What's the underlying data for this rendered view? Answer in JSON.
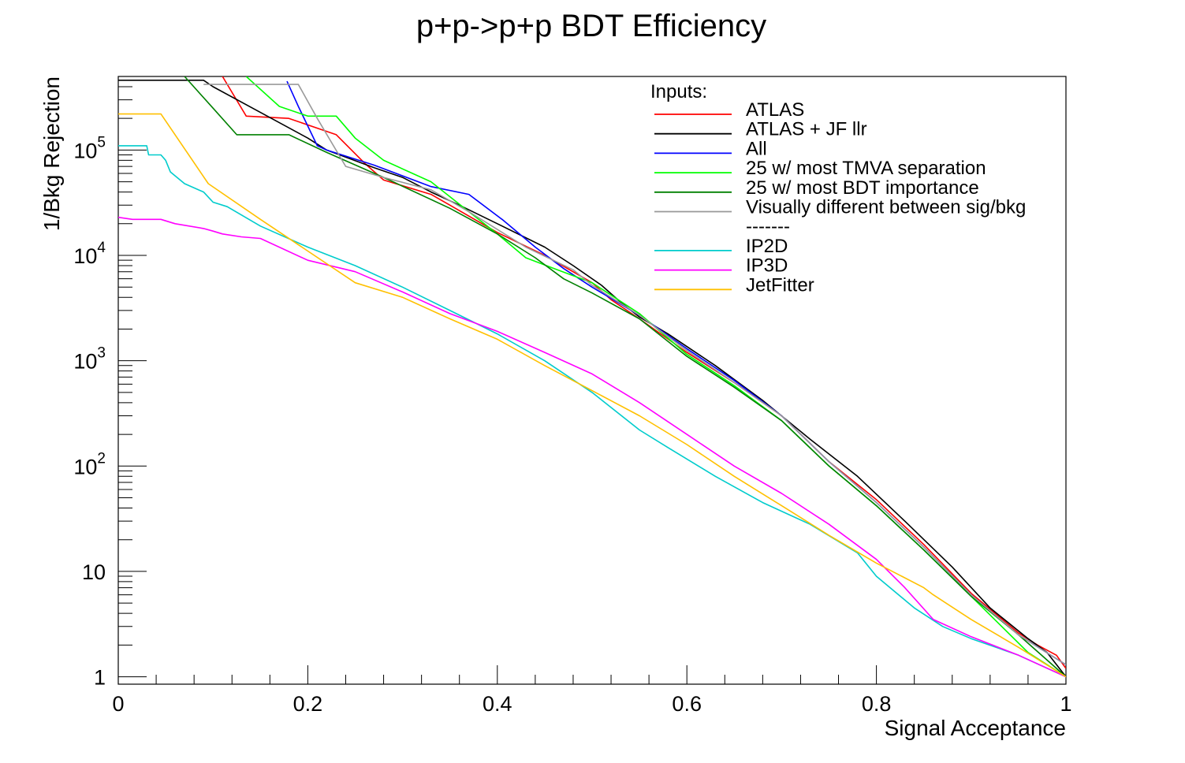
{
  "chart_data": {
    "type": "line",
    "title": "p+p->p+p BDT Efficiency",
    "xlabel": "Signal Acceptance",
    "ylabel": "1/Bkg Rejection",
    "xlim": [
      0,
      1
    ],
    "ylim": [
      0.85,
      500000
    ],
    "yscale": "log",
    "grid": false,
    "legend_placement": "top-right",
    "legend_header": "Inputs:",
    "legend_separator": "-------",
    "x_ticks": [
      {
        "value": 0,
        "label": "0"
      },
      {
        "value": 0.2,
        "label": "0.2"
      },
      {
        "value": 0.4,
        "label": "0.4"
      },
      {
        "value": 0.6,
        "label": "0.6"
      },
      {
        "value": 0.8,
        "label": "0.8"
      },
      {
        "value": 1,
        "label": "1"
      }
    ],
    "y_ticks": [
      {
        "value": 1,
        "label": "1"
      },
      {
        "value": 10,
        "label": "10"
      },
      {
        "value": 100,
        "base": "10",
        "exp": "2"
      },
      {
        "value": 1000,
        "base": "10",
        "exp": "3"
      },
      {
        "value": 10000,
        "base": "10",
        "exp": "4"
      },
      {
        "value": 100000,
        "base": "10",
        "exp": "5"
      }
    ],
    "series": [
      {
        "name": "ATLAS",
        "color": "#ff0000",
        "x": [
          0.11,
          0.135,
          0.18,
          0.23,
          0.26,
          0.28,
          0.33,
          0.35,
          0.4,
          0.45,
          0.5,
          0.52,
          0.55,
          0.6,
          0.65,
          0.7,
          0.75,
          0.8,
          0.85,
          0.9,
          0.95,
          0.97,
          0.99,
          1.0
        ],
        "y": [
          500000,
          210000,
          200000,
          140000,
          75000,
          52000,
          38000,
          30000,
          16500,
          10000,
          5500,
          3800,
          2500,
          1200,
          620,
          300,
          110,
          48,
          18,
          6.2,
          2.6,
          2.0,
          1.6,
          1.2
        ]
      },
      {
        "name": "ATLAS + JF llr",
        "color": "#000000",
        "x": [
          0.0,
          0.09,
          0.1,
          0.2,
          0.22,
          0.27,
          0.3,
          0.33,
          0.36,
          0.4,
          0.45,
          0.48,
          0.51,
          0.53,
          0.55,
          0.58,
          0.63,
          0.68,
          0.73,
          0.78,
          0.83,
          0.88,
          0.92,
          0.96,
          0.98,
          1.0
        ],
        "y": [
          460000,
          460000,
          400000,
          130000,
          100000,
          68000,
          55000,
          40000,
          30000,
          20000,
          12000,
          8000,
          5200,
          3600,
          2600,
          1800,
          900,
          420,
          180,
          80,
          30,
          11,
          4.5,
          2.3,
          1.7,
          1.0
        ]
      },
      {
        "name": "All",
        "color": "#0000ff",
        "x": [
          0.178,
          0.19,
          0.21,
          0.22,
          0.27,
          0.33,
          0.37,
          0.405,
          0.44,
          0.47,
          0.5,
          0.55,
          0.6,
          0.65,
          0.7,
          0.75,
          0.8,
          0.85,
          0.9,
          0.95,
          1.0
        ],
        "y": [
          450000,
          260000,
          110000,
          100000,
          72000,
          45000,
          38000,
          22000,
          12000,
          7500,
          5000,
          2700,
          1300,
          650,
          300,
          110,
          45,
          17,
          6.0,
          2.5,
          1.3
        ]
      },
      {
        "name": "25 w/ most TMVA separation",
        "color": "#00ff00",
        "x": [
          0.135,
          0.17,
          0.2,
          0.23,
          0.25,
          0.28,
          0.33,
          0.37,
          0.4,
          0.43,
          0.46,
          0.5,
          0.55,
          0.6,
          0.65,
          0.7,
          0.75,
          0.8,
          0.85,
          0.9,
          0.96,
          1.0
        ],
        "y": [
          500000,
          260000,
          210000,
          210000,
          130000,
          80000,
          50000,
          26000,
          16000,
          9500,
          7500,
          5500,
          2800,
          1150,
          580,
          270,
          100,
          42,
          16,
          5.8,
          1.7,
          1.0
        ]
      },
      {
        "name": "25 w/ most BDT importance",
        "color": "#008000",
        "x": [
          0.07,
          0.1,
          0.125,
          0.18,
          0.22,
          0.28,
          0.35,
          0.4,
          0.44,
          0.47,
          0.5,
          0.55,
          0.6,
          0.65,
          0.7,
          0.75,
          0.8,
          0.85,
          0.9,
          0.95,
          1.0
        ],
        "y": [
          500000,
          250000,
          140000,
          140000,
          95000,
          55000,
          28000,
          16000,
          9500,
          6000,
          4400,
          2500,
          1100,
          560,
          270,
          100,
          42,
          16,
          5.8,
          2.5,
          1.0
        ]
      },
      {
        "name": "Visually different between sig/bkg",
        "color": "#999999",
        "x": [
          0.09,
          0.19,
          0.21,
          0.24,
          0.28,
          0.33,
          0.37,
          0.43,
          0.48,
          0.5,
          0.55,
          0.6,
          0.65,
          0.7,
          0.75,
          0.8,
          0.85,
          0.9,
          0.95,
          1.0
        ],
        "y": [
          420000,
          420000,
          200000,
          70000,
          55000,
          42000,
          26000,
          12000,
          7300,
          5200,
          2700,
          1250,
          620,
          300,
          110,
          45,
          17,
          6.0,
          2.5,
          1.3
        ]
      },
      {
        "name": "IP2D",
        "color": "#00cccc",
        "x": [
          0.0,
          0.03,
          0.032,
          0.045,
          0.05,
          0.055,
          0.07,
          0.09,
          0.1,
          0.115,
          0.15,
          0.2,
          0.25,
          0.3,
          0.35,
          0.4,
          0.45,
          0.5,
          0.55,
          0.58,
          0.63,
          0.68,
          0.73,
          0.78,
          0.8,
          0.84,
          0.87,
          0.9,
          0.95,
          1.0
        ],
        "y": [
          110000,
          110000,
          90000,
          90000,
          80000,
          62000,
          48000,
          40000,
          32000,
          29000,
          19000,
          12000,
          8000,
          5000,
          3000,
          1800,
          1000,
          500,
          220,
          150,
          80,
          45,
          28,
          15,
          9.0,
          4.5,
          3.0,
          2.3,
          1.6,
          1.0
        ]
      },
      {
        "name": "IP3D",
        "color": "#ff00ff",
        "x": [
          0.0,
          0.015,
          0.045,
          0.06,
          0.09,
          0.1,
          0.11,
          0.13,
          0.15,
          0.2,
          0.25,
          0.3,
          0.35,
          0.4,
          0.45,
          0.5,
          0.55,
          0.6,
          0.65,
          0.7,
          0.75,
          0.8,
          0.83,
          0.86,
          0.9,
          0.95,
          1.0
        ],
        "y": [
          23000,
          22000,
          22000,
          20000,
          18000,
          17000,
          16000,
          15000,
          14500,
          9000,
          7000,
          4500,
          2800,
          1900,
          1200,
          750,
          400,
          200,
          100,
          55,
          28,
          13,
          7.0,
          3.5,
          2.4,
          1.6,
          1.0
        ]
      },
      {
        "name": "JetFitter",
        "color": "#ffc000",
        "x": [
          0.0,
          0.045,
          0.095,
          0.15,
          0.2,
          0.25,
          0.3,
          0.35,
          0.4,
          0.45,
          0.5,
          0.55,
          0.6,
          0.65,
          0.7,
          0.75,
          0.8,
          0.85,
          0.86,
          0.9,
          0.95,
          1.0
        ],
        "y": [
          220000,
          220000,
          48000,
          22000,
          11000,
          5500,
          4000,
          2500,
          1600,
          900,
          520,
          300,
          160,
          80,
          42,
          22,
          12,
          7.0,
          6.0,
          3.5,
          1.9,
          1.0
        ]
      }
    ]
  }
}
